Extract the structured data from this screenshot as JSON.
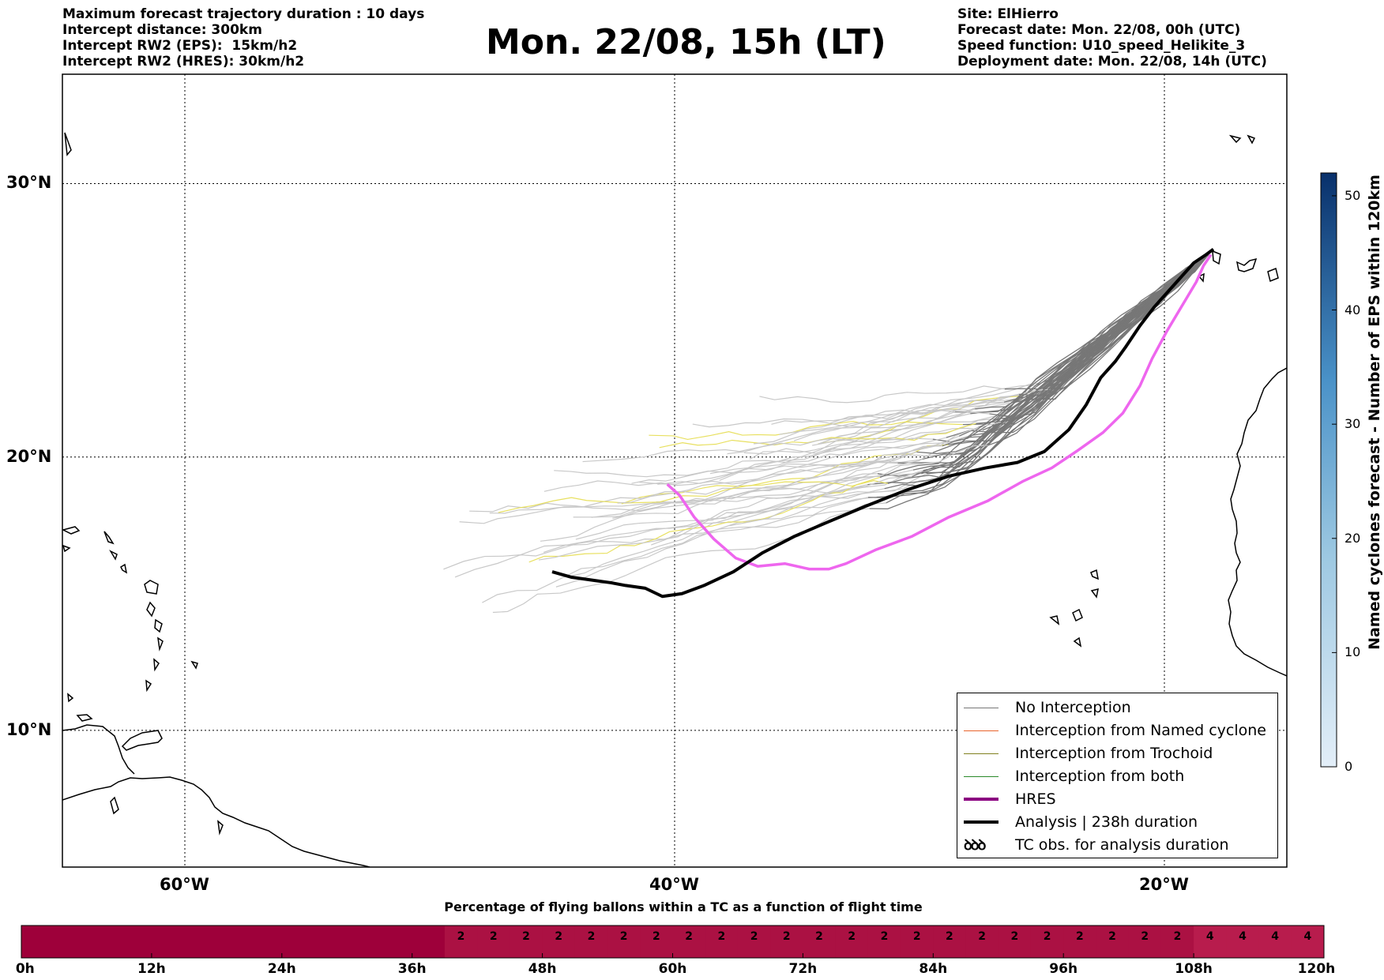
{
  "header": {
    "title": "Mon. 22/08, 15h (LT)",
    "left_lines": [
      "Maximum forecast trajectory duration : 10 days",
      "Intercept distance: 300km",
      "Intercept RW2 (EPS):  15km/h2",
      "Intercept RW2 (HRES): 30km/h2"
    ],
    "right_lines": [
      "Site: ElHierro",
      "Forecast date: Mon. 22/08, 00h (UTC)",
      "Speed function: U10_speed_Helikite_3",
      "Deployment date: Mon. 22/08, 14h (UTC)"
    ]
  },
  "chart_data": [
    {
      "type": "line",
      "xlabel": "",
      "ylabel": "",
      "xlim": [
        -65,
        -15
      ],
      "ylim": [
        5,
        34
      ],
      "x_ticks": [
        -60,
        -40,
        -20
      ],
      "x_tick_labels": [
        "60°W",
        "40°W",
        "20°W"
      ],
      "y_ticks": [
        10,
        20,
        30
      ],
      "y_tick_labels": [
        "10°N",
        "20°N",
        "30°N"
      ],
      "grid": true,
      "legend_position": "lower-right",
      "legend": [
        "No Interception",
        "Interception from Named cyclone",
        "Interception from Trochoid",
        "Interception from both",
        "HRES",
        "Analysis | 238h duration",
        "TC obs. for analysis duration"
      ],
      "legend_glyph": "ꝺꝺꝺ",
      "colors": {
        "no_interception": "#777777",
        "named_cyclone": "#e8642c",
        "trochoid": "#808020",
        "both": "#2a8a2a",
        "hres": "#8b0080",
        "analysis": "#000000",
        "eps_late": "#c8c8c8",
        "trochoid_late": "#e8e060"
      },
      "series": [
        {
          "name": "HRES",
          "x": [
            -40.3,
            -39.8,
            -39.2,
            -38.4,
            -37.5,
            -36.6,
            -35.5,
            -34.5,
            -33.7,
            -33.0,
            -31.8,
            -30.3,
            -28.8,
            -27.2,
            -25.8,
            -24.6,
            -23.6,
            -22.5,
            -21.7,
            -21.0,
            -20.5,
            -19.9,
            -19.3,
            -18.7,
            -18.4,
            -18.1
          ],
          "y": [
            19.0,
            18.6,
            17.8,
            17.0,
            16.3,
            16.0,
            16.1,
            15.9,
            15.9,
            16.1,
            16.6,
            17.1,
            17.8,
            18.4,
            19.1,
            19.6,
            20.2,
            20.9,
            21.6,
            22.6,
            23.6,
            24.6,
            25.5,
            26.4,
            27.0,
            27.4
          ]
        },
        {
          "name": "Analysis | 238h duration",
          "x": [
            -45.0,
            -44.2,
            -43.4,
            -42.6,
            -42.0,
            -41.2,
            -40.5,
            -39.7,
            -38.8,
            -37.6,
            -36.4,
            -35.1,
            -33.8,
            -32.2,
            -30.5,
            -28.8,
            -27.3,
            -26.0,
            -24.9,
            -23.9,
            -23.2,
            -22.6,
            -22.0,
            -21.6,
            -21.0,
            -20.4,
            -19.8,
            -19.2,
            -18.8,
            -18.3,
            -18.0
          ],
          "y": [
            15.8,
            15.6,
            15.5,
            15.4,
            15.3,
            15.2,
            14.9,
            15.0,
            15.3,
            15.8,
            16.5,
            17.1,
            17.6,
            18.2,
            18.8,
            19.3,
            19.6,
            19.8,
            20.2,
            21.0,
            21.9,
            22.9,
            23.5,
            24.0,
            24.8,
            25.5,
            26.1,
            26.7,
            27.1,
            27.4,
            27.6
          ]
        }
      ]
    },
    {
      "type": "heatmap",
      "title": "Named cyclones forecast - Number of EPS within 120km",
      "colorbar_ticks": [
        0,
        10,
        20,
        30,
        40,
        50
      ],
      "colorbar_range": [
        0,
        52
      ],
      "colors": {
        "low": "#e2edf7",
        "high": "#08306b"
      }
    },
    {
      "type": "bar",
      "title": "Percentage of flying ballons within a TC as a function of flight time",
      "tick_labels": [
        "0h",
        "12h",
        "24h",
        "36h",
        "48h",
        "60h",
        "72h",
        "84h",
        "96h",
        "108h",
        "120h"
      ],
      "x_ticks_hours": [
        0,
        12,
        24,
        36,
        48,
        60,
        72,
        84,
        96,
        108,
        120
      ],
      "bin_hours": 3,
      "values": [
        0,
        0,
        0,
        0,
        0,
        0,
        0,
        0,
        0,
        0,
        0,
        0,
        0,
        2,
        2,
        2,
        2,
        2,
        2,
        2,
        2,
        2,
        2,
        2,
        2,
        2,
        2,
        2,
        2,
        2,
        2,
        2,
        2,
        2,
        2,
        2,
        4,
        4,
        4,
        4
      ],
      "colors": {
        "0": "#9e003a",
        "2": "#ab1143",
        "4": "#b81c4d"
      }
    }
  ]
}
